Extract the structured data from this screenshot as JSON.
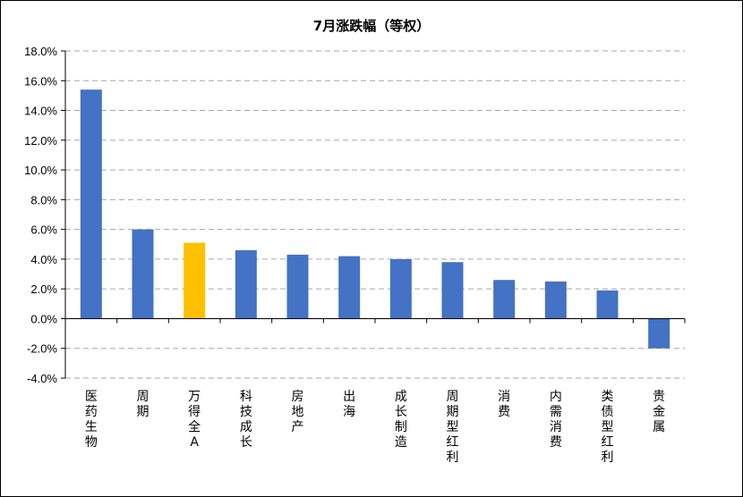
{
  "chart_data": {
    "type": "bar",
    "title": "7月涨跌幅（等权）",
    "categories": [
      "医药生物",
      "周期",
      "万得全A",
      "科技成长",
      "房地产",
      "出海",
      "成长制造",
      "周期型红利",
      "消费",
      "内需消费",
      "类债型红利",
      "贵金属"
    ],
    "values": [
      15.4,
      6.0,
      5.1,
      4.6,
      4.3,
      4.2,
      4.0,
      3.8,
      2.6,
      2.5,
      1.9,
      -2.0
    ],
    "highlight_category": "万得全A",
    "colors": {
      "bar": "#4472C4",
      "highlight": "#FFC000"
    },
    "ylim": [
      -4.0,
      18.0
    ],
    "yticks": [
      18,
      16,
      14,
      12,
      10,
      8,
      6,
      4,
      2,
      0,
      -2,
      -4
    ],
    "ytick_labels": [
      "18.0%",
      "16.0%",
      "14.0%",
      "12.0%",
      "10.0%",
      "8.0%",
      "6.0%",
      "4.0%",
      "2.0%",
      "0.0%",
      "-2.0%",
      "-4.0%"
    ],
    "xlabel": "",
    "ylabel": "",
    "grid": "horizontal-dashed",
    "legend": "none"
  }
}
